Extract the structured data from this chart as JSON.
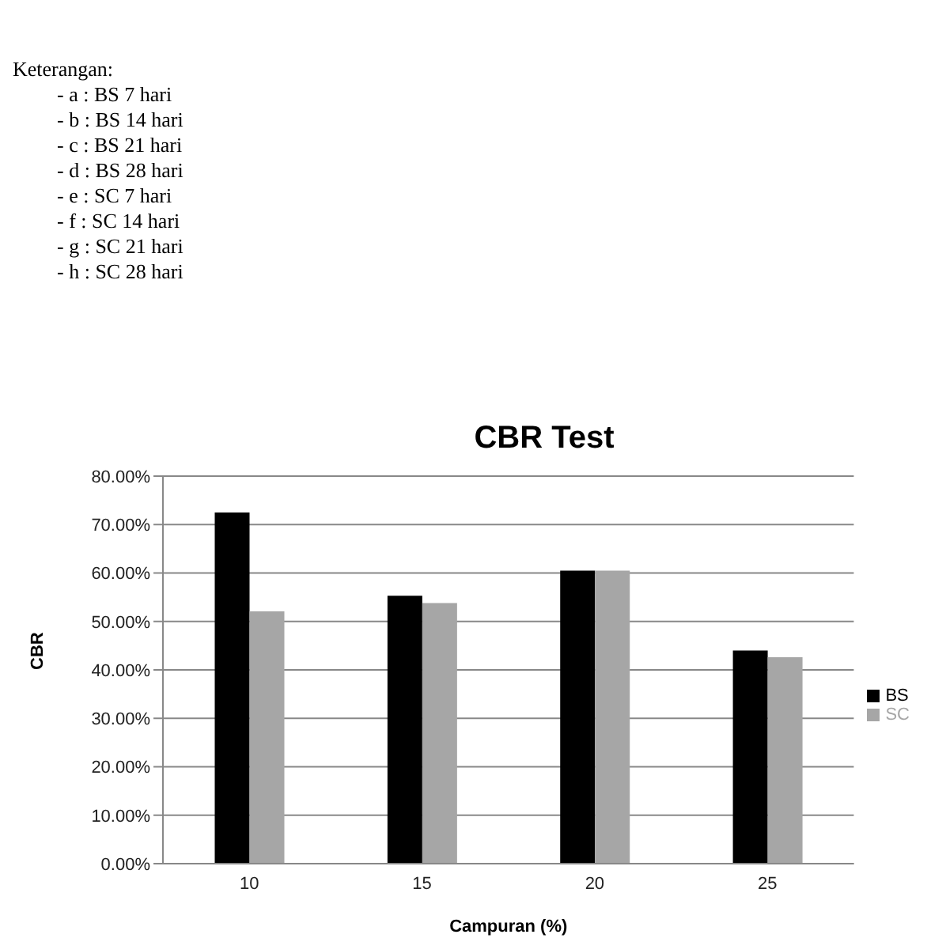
{
  "chart_data": {
    "type": "bar",
    "title": "CBR Test",
    "xlabel": "Campuran (%)",
    "ylabel": "CBR",
    "annotations": [
      "Keterangan:",
      "- a : BS 7 hari",
      "- b : BS 14 hari",
      "- c : BS 21 hari",
      "- d : BS 28 hari",
      "- e : SC 7 hari",
      "- f : SC 14 hari",
      "- g : SC 21 hari",
      "- h : SC 28 hari"
    ],
    "categories": [
      "10",
      "15",
      "20",
      "25"
    ],
    "series": [
      {
        "name": "BS",
        "color": "#000000",
        "values": [
          72.5,
          55.3,
          60.5,
          44.0
        ]
      },
      {
        "name": "SC",
        "color": "#a6a6a6",
        "values": [
          52.1,
          53.8,
          60.5,
          42.6
        ]
      }
    ],
    "ylim": [
      0,
      80
    ],
    "yticks": [
      {
        "value": 0,
        "label": "0.00%"
      },
      {
        "value": 10,
        "label": "10.00%"
      },
      {
        "value": 20,
        "label": "20.00%"
      },
      {
        "value": 30,
        "label": "30.00%"
      },
      {
        "value": 40,
        "label": "40.00%"
      },
      {
        "value": 50,
        "label": "50.00%"
      },
      {
        "value": 60,
        "label": "60.00%"
      },
      {
        "value": 70,
        "label": "70.00%"
      },
      {
        "value": 80,
        "label": "80.00%"
      }
    ],
    "grid": "y",
    "legend": "right"
  }
}
